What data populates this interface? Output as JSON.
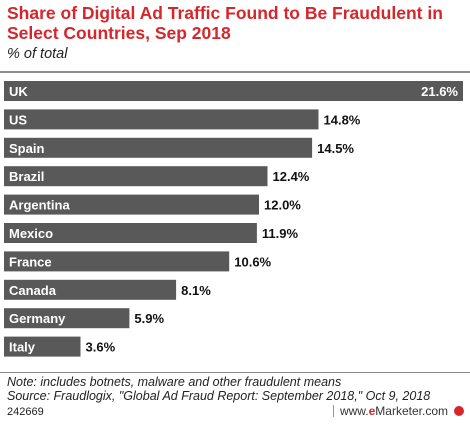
{
  "title": "Share of Digital Ad Traffic Found to Be Fraudulent in Select Countries, Sep 2018",
  "subtitle": "% of total",
  "chart_data": {
    "type": "bar",
    "orientation": "horizontal",
    "categories": [
      "UK",
      "US",
      "Spain",
      "Brazil",
      "Argentina",
      "Mexico",
      "France",
      "Canada",
      "Germany",
      "Italy"
    ],
    "values": [
      21.6,
      14.8,
      14.5,
      12.4,
      12.0,
      11.9,
      10.6,
      8.1,
      5.9,
      3.6
    ],
    "value_labels": [
      "21.6%",
      "14.8%",
      "14.5%",
      "12.4%",
      "12.0%",
      "11.9%",
      "10.6%",
      "8.1%",
      "5.9%",
      "3.6%"
    ],
    "bar_color": "#595959",
    "xlim": [
      0,
      21.6
    ],
    "grid": false,
    "legend": "none"
  },
  "note": "Note: includes botnets, malware and other fraudulent means",
  "source": "Source: Fraudlogix, \"Global Ad Fraud Report: September 2018,\" Oct 9, 2018",
  "footer": {
    "chart_id": "242669",
    "brand_prefix": "www.",
    "brand_e": "e",
    "brand_name": "Marketer",
    "brand_suffix": ".com"
  },
  "colors": {
    "title": "#d7262b",
    "bar": "#595959",
    "brand": "#d7262b"
  }
}
